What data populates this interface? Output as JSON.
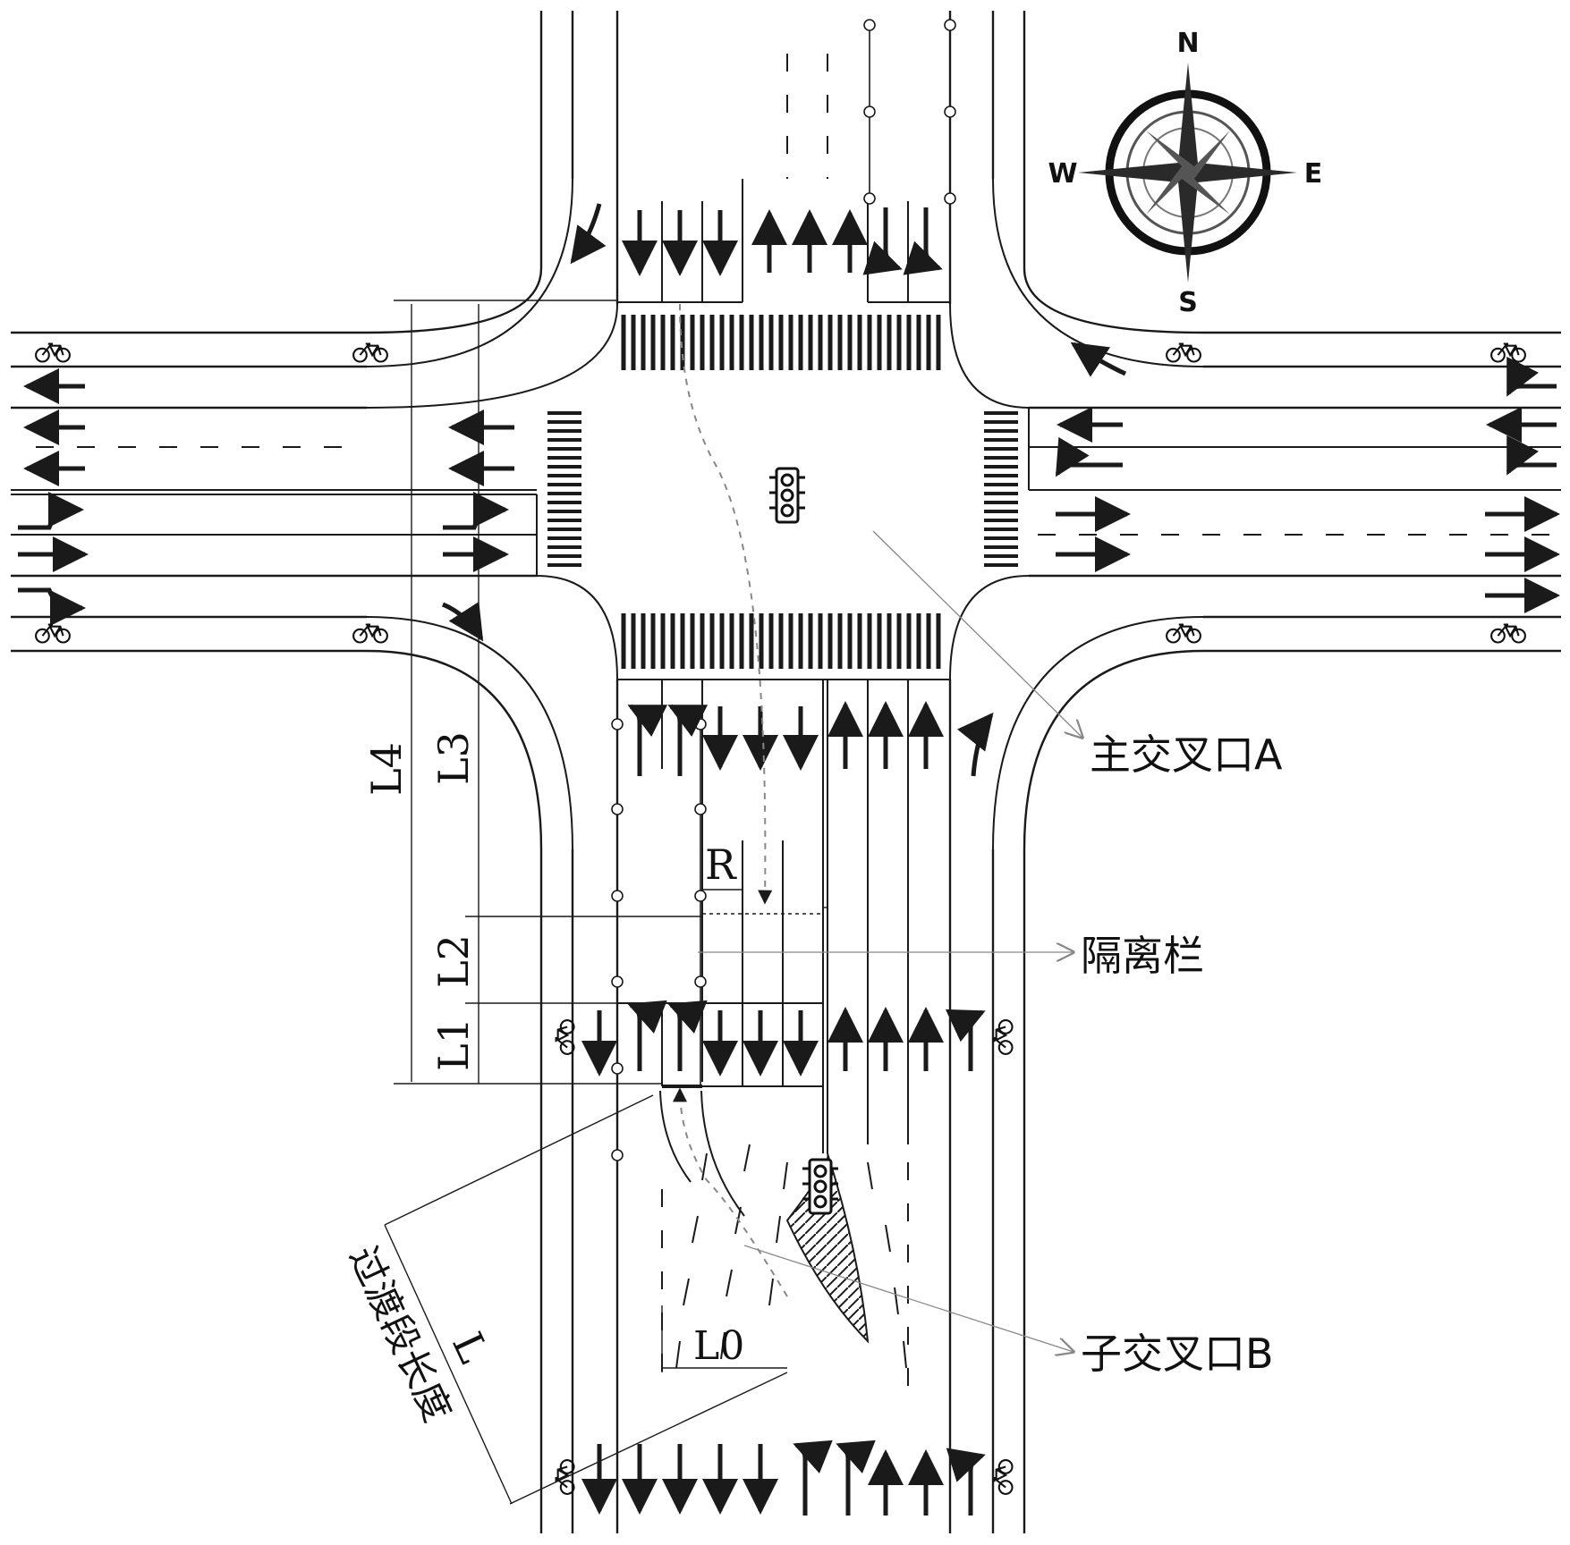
{
  "labels": {
    "main_intersection": "主交叉口A",
    "barrier": "隔离栏",
    "sub_intersection": "子交叉口B",
    "transition_length": "过渡段长度"
  },
  "dimensions": {
    "L": "L",
    "L0": "L0",
    "L1": "L1",
    "L2": "L2",
    "L3": "L3",
    "L4": "L4",
    "R": "R"
  },
  "compass": {
    "north": "N",
    "south": "S",
    "east": "E",
    "west": "W"
  },
  "icons": {
    "traffic_light": "traffic-light-icon",
    "bicycle": "bicycle-icon",
    "compass": "compass-rose-icon",
    "arrow": "lane-arrow-icon"
  },
  "colors": {
    "line": "#1a1a1a",
    "guide": "#8a8a8a",
    "paper": "#ffffff"
  }
}
